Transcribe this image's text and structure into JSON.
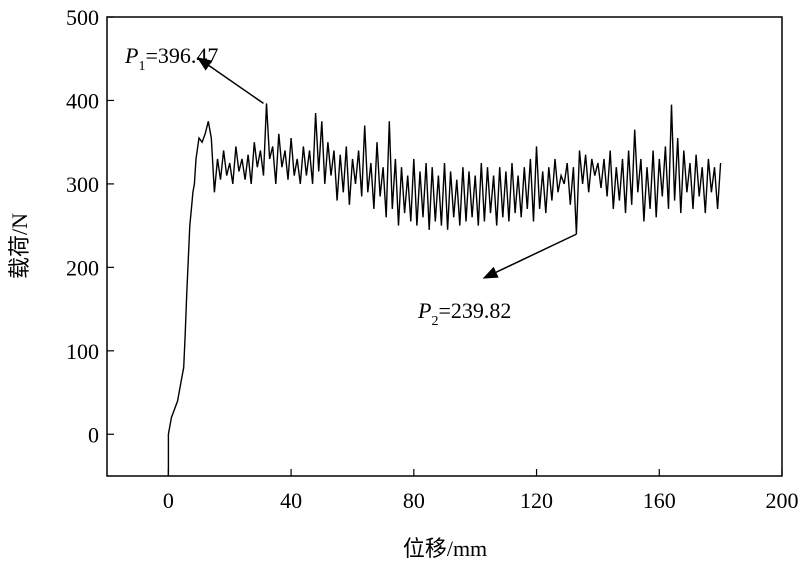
{
  "chart_data": {
    "type": "line",
    "x_label": "位移/mm",
    "y_label": "载荷/N",
    "color": "#000000",
    "xlim": [
      -20,
      200
    ],
    "xticks": [
      0,
      40,
      80,
      120,
      160,
      200
    ],
    "ylim": [
      -50,
      500
    ],
    "yticks": [
      0,
      100,
      200,
      300,
      400,
      500
    ],
    "x": [
      0,
      0,
      0.5,
      1,
      2,
      3,
      4,
      5,
      5.5,
      6,
      6.5,
      7,
      7.5,
      8,
      8.5,
      9,
      10,
      11,
      12,
      13,
      14,
      15,
      16,
      17,
      18,
      19,
      20,
      21,
      22,
      23,
      24,
      25,
      26,
      27,
      28,
      29,
      30,
      31,
      32,
      33,
      34,
      35,
      36,
      37,
      38,
      39,
      40,
      41,
      42,
      43,
      44,
      45,
      46,
      47,
      48,
      49,
      50,
      51,
      52,
      53,
      54,
      55,
      56,
      57,
      58,
      59,
      60,
      61,
      62,
      63,
      64,
      65,
      66,
      67,
      68,
      69,
      70,
      71,
      72,
      73,
      74,
      75,
      76,
      77,
      78,
      79,
      80,
      81,
      82,
      83,
      84,
      85,
      86,
      87,
      88,
      89,
      90,
      91,
      92,
      93,
      94,
      95,
      96,
      97,
      98,
      99,
      100,
      101,
      102,
      103,
      104,
      105,
      106,
      107,
      108,
      109,
      110,
      111,
      112,
      113,
      114,
      115,
      116,
      117,
      118,
      119,
      120,
      121,
      122,
      123,
      124,
      125,
      126,
      127,
      128,
      129,
      130,
      131,
      132,
      133,
      134,
      135,
      136,
      137,
      138,
      139,
      140,
      141,
      142,
      143,
      144,
      145,
      146,
      147,
      148,
      149,
      150,
      151,
      152,
      153,
      154,
      155,
      156,
      157,
      158,
      159,
      160,
      161,
      162,
      163,
      164,
      165,
      166,
      167,
      168,
      169,
      170,
      171,
      172,
      173,
      174,
      175,
      176,
      177,
      178,
      179,
      180
    ],
    "values": [
      -50,
      0,
      10,
      20,
      30,
      40,
      60,
      80,
      120,
      170,
      210,
      250,
      270,
      290,
      300,
      330,
      355,
      350,
      360,
      375,
      355,
      290,
      330,
      305,
      340,
      310,
      325,
      300,
      345,
      315,
      330,
      305,
      335,
      300,
      350,
      320,
      340,
      310,
      396.47,
      330,
      345,
      300,
      360,
      320,
      340,
      305,
      355,
      310,
      330,
      300,
      345,
      310,
      340,
      300,
      385,
      315,
      375,
      300,
      350,
      310,
      340,
      280,
      335,
      290,
      345,
      275,
      330,
      300,
      340,
      285,
      370,
      290,
      325,
      270,
      350,
      285,
      320,
      260,
      375,
      270,
      330,
      250,
      320,
      265,
      310,
      255,
      330,
      250,
      315,
      260,
      325,
      245,
      320,
      255,
      310,
      250,
      325,
      245,
      315,
      260,
      305,
      250,
      320,
      255,
      315,
      260,
      310,
      250,
      325,
      255,
      320,
      265,
      310,
      250,
      320,
      260,
      315,
      255,
      325,
      265,
      310,
      260,
      320,
      270,
      330,
      255,
      345,
      270,
      315,
      265,
      320,
      280,
      330,
      290,
      310,
      300,
      325,
      275,
      320,
      239.82,
      340,
      300,
      335,
      290,
      330,
      310,
      325,
      295,
      330,
      285,
      340,
      270,
      320,
      280,
      330,
      265,
      340,
      275,
      365,
      290,
      330,
      255,
      320,
      270,
      340,
      260,
      330,
      285,
      345,
      270,
      395,
      280,
      355,
      265,
      340,
      290,
      325,
      270,
      335,
      285,
      320,
      265,
      330,
      290,
      320,
      270,
      325
    ],
    "annotations": [
      {
        "label": "P",
        "subscript": "1",
        "value_label": "=396.47",
        "value": 396.47,
        "x": 31
      },
      {
        "label": "P",
        "subscript": "2",
        "value_label": "=239.82",
        "value": 239.82,
        "x": 133
      }
    ]
  }
}
